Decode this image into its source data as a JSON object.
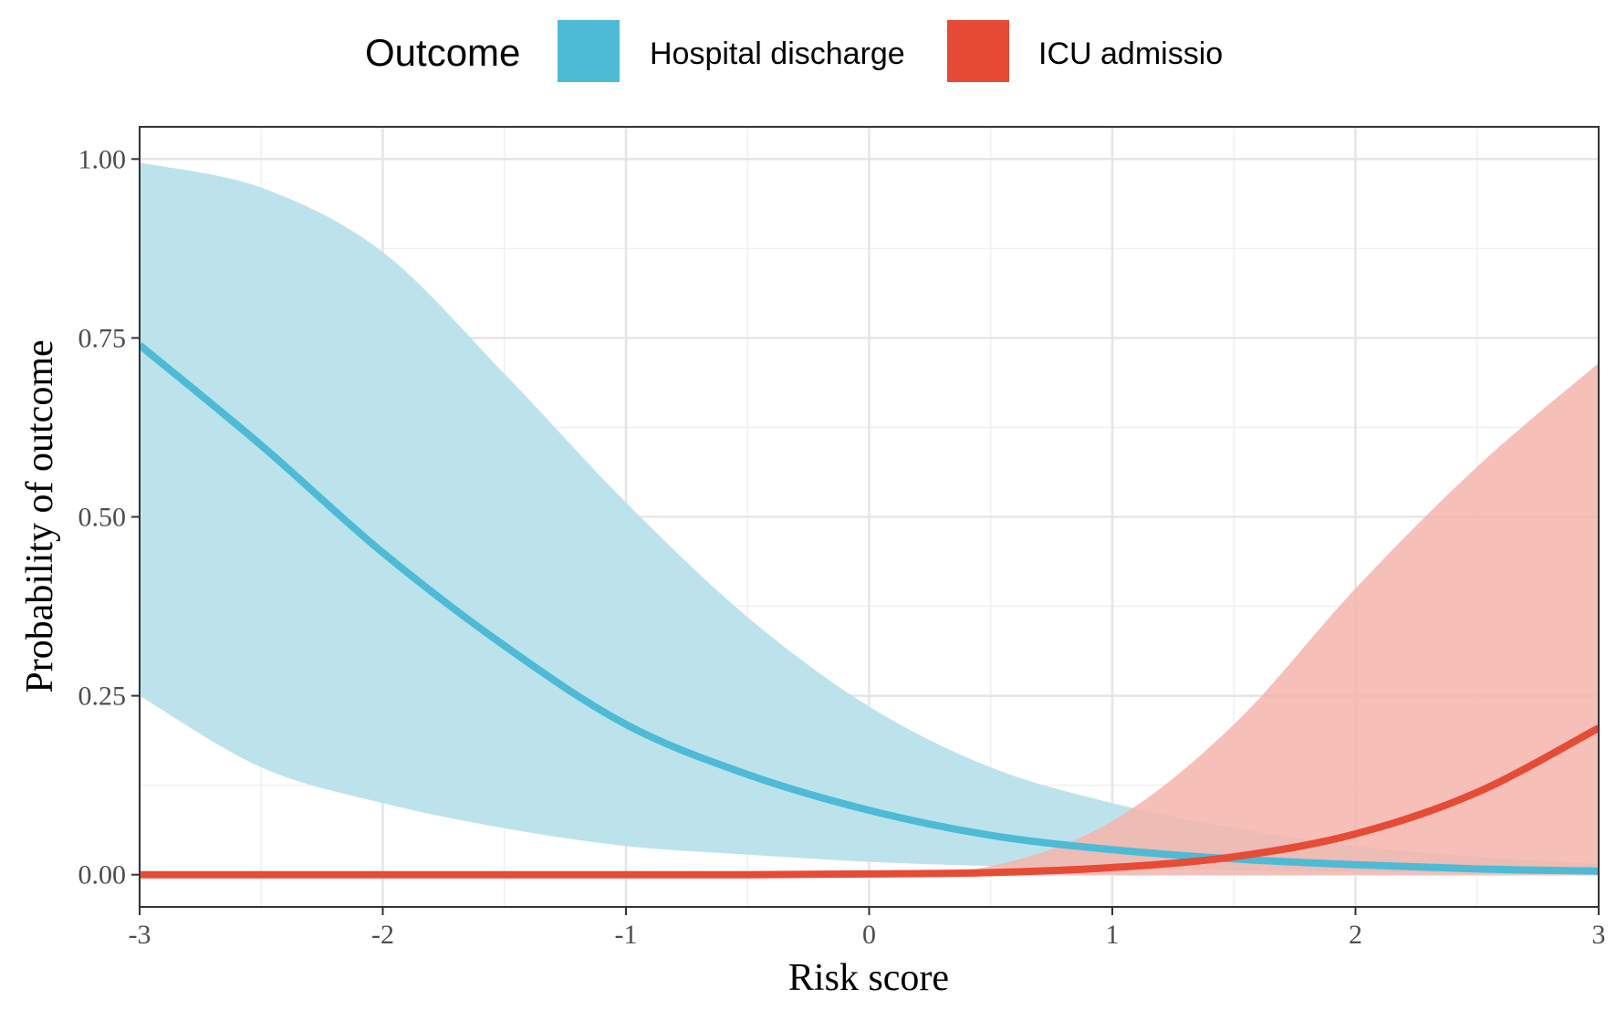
{
  "chart_data": {
    "type": "line",
    "title": "",
    "xlabel": "Risk score",
    "ylabel": "Probability of outcome",
    "xlim": [
      -3,
      3
    ],
    "ylim": [
      -0.045,
      1.045
    ],
    "x_ticks": [
      -3,
      -2,
      -1,
      0,
      1,
      2,
      3
    ],
    "x_tick_labels": [
      "-3",
      "-2",
      "-1",
      "0",
      "1",
      "2",
      "3"
    ],
    "y_ticks": [
      0,
      0.25,
      0.5,
      0.75,
      1.0
    ],
    "y_tick_labels": [
      "0.00",
      "0.25",
      "0.50",
      "0.75",
      "1.00"
    ],
    "grid": true,
    "legend": {
      "title": "Outcome",
      "position": "top",
      "items": [
        "Hospital discharge",
        "ICU admissio"
      ]
    },
    "series": [
      {
        "name": "Hospital discharge",
        "color": "#4DBBD5",
        "ribbon_color": "#B8E2EB",
        "x": [
          -3,
          -2.5,
          -2,
          -1.5,
          -1,
          -0.5,
          0,
          0.5,
          1,
          1.5,
          2,
          2.5,
          3
        ],
        "y": [
          0.74,
          0.6,
          0.45,
          0.32,
          0.21,
          0.14,
          0.09,
          0.055,
          0.035,
          0.022,
          0.014,
          0.008,
          0.005
        ],
        "lower": [
          0.25,
          0.15,
          0.1,
          0.065,
          0.04,
          0.028,
          0.018,
          0.012,
          0.009,
          0.006,
          0.004,
          0.003,
          0.002
        ],
        "upper": [
          0.995,
          0.96,
          0.87,
          0.7,
          0.52,
          0.36,
          0.235,
          0.15,
          0.1,
          0.065,
          0.04,
          0.025,
          0.015
        ]
      },
      {
        "name": "ICU admissio",
        "color": "#E64B35",
        "ribbon_color": "#F5B5AB",
        "x": [
          -3,
          -2.5,
          -2,
          -1.5,
          -1,
          -0.5,
          0,
          0.5,
          1,
          1.5,
          2,
          2.5,
          3
        ],
        "y": [
          0,
          0,
          0,
          0,
          0,
          0,
          0.001,
          0.003,
          0.01,
          0.025,
          0.057,
          0.115,
          0.205
        ],
        "lower": [
          0,
          0,
          0,
          0,
          0,
          0,
          0,
          0,
          0,
          0,
          0,
          0,
          0
        ],
        "upper": [
          0,
          0,
          0,
          0,
          0,
          0,
          0.002,
          0.012,
          0.075,
          0.21,
          0.4,
          0.57,
          0.715
        ]
      }
    ]
  }
}
